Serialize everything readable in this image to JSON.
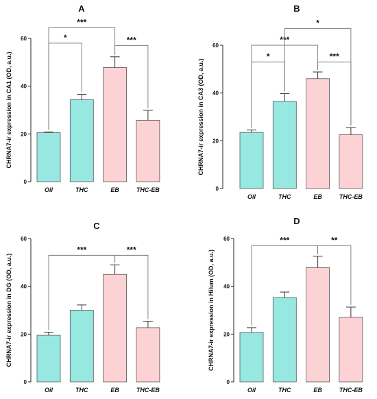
{
  "colors": {
    "teal": "#98E8E2",
    "pink": "#FCD2D4",
    "outline": "#555555"
  },
  "chart_data": [
    {
      "type": "bar",
      "panel": "A",
      "categories": [
        "Oil",
        "THC",
        "EB",
        "THC-EB"
      ],
      "values": [
        20.5,
        34.3,
        47.8,
        25.7
      ],
      "errors": [
        0.3,
        2.3,
        4.5,
        4.2
      ],
      "bar_colors": [
        "teal",
        "teal",
        "pink",
        "pink"
      ],
      "ylabel": "CHRNA7-ir expression in CA1 (OD, a.u.)",
      "ylim": [
        0,
        60
      ],
      "yticks": [
        0,
        20,
        40,
        60
      ],
      "significance": [
        {
          "from": 0,
          "to": 1,
          "label": "*",
          "level": 58
        },
        {
          "from": 0,
          "to": 2,
          "label": "***",
          "level": 64.5
        },
        {
          "from": 2,
          "to": 3,
          "label": "***",
          "level": 57
        }
      ]
    },
    {
      "type": "bar",
      "panel": "B",
      "categories": [
        "Oil",
        "THC",
        "EB",
        "THC-EB"
      ],
      "values": [
        23.5,
        36.5,
        46.0,
        22.5
      ],
      "errors": [
        1.0,
        3.3,
        2.8,
        3.0
      ],
      "bar_colors": [
        "teal",
        "teal",
        "pink",
        "pink"
      ],
      "ylabel": "CHRNA7-ir expression in CA3 (OD, a.u.)",
      "ylim": [
        0,
        60
      ],
      "yticks": [
        0,
        20,
        40,
        60
      ],
      "significance": [
        {
          "from": 0,
          "to": 1,
          "label": "*",
          "level": 53
        },
        {
          "from": 0,
          "to": 2,
          "label": "***",
          "level": 60
        },
        {
          "from": 2,
          "to": 3,
          "label": "***",
          "level": 53
        },
        {
          "from": 1,
          "to": 3,
          "label": "*",
          "level": 67
        }
      ]
    },
    {
      "type": "bar",
      "panel": "C",
      "categories": [
        "Oil",
        "THC",
        "EB",
        "THC-EB"
      ],
      "values": [
        19.5,
        30.0,
        45.0,
        22.7
      ],
      "errors": [
        1.3,
        2.2,
        4.0,
        2.7
      ],
      "bar_colors": [
        "teal",
        "teal",
        "pink",
        "pink"
      ],
      "ylabel": "CHRNA7-ir expression in DG (OD, a.u.)",
      "ylim": [
        0,
        60
      ],
      "yticks": [
        0,
        20,
        40,
        60
      ],
      "significance": [
        {
          "from": 0,
          "to": 2,
          "label": "***",
          "level": 53
        },
        {
          "from": 2,
          "to": 3,
          "label": "***",
          "level": 53
        }
      ]
    },
    {
      "type": "bar",
      "panel": "D",
      "categories": [
        "Oil",
        "THC",
        "EB",
        "THC-EB"
      ],
      "values": [
        20.7,
        35.3,
        47.8,
        27.0
      ],
      "errors": [
        2.0,
        2.3,
        4.8,
        4.3
      ],
      "bar_colors": [
        "teal",
        "teal",
        "pink",
        "pink"
      ],
      "ylabel": "CHRNA7-ir expression in Hilum (OD, a.u.)",
      "ylim": [
        0,
        60
      ],
      "yticks": [
        0,
        20,
        40,
        60
      ],
      "significance": [
        {
          "from": 0,
          "to": 2,
          "label": "***",
          "level": 57
        },
        {
          "from": 2,
          "to": 3,
          "label": "**",
          "level": 57
        }
      ]
    }
  ]
}
